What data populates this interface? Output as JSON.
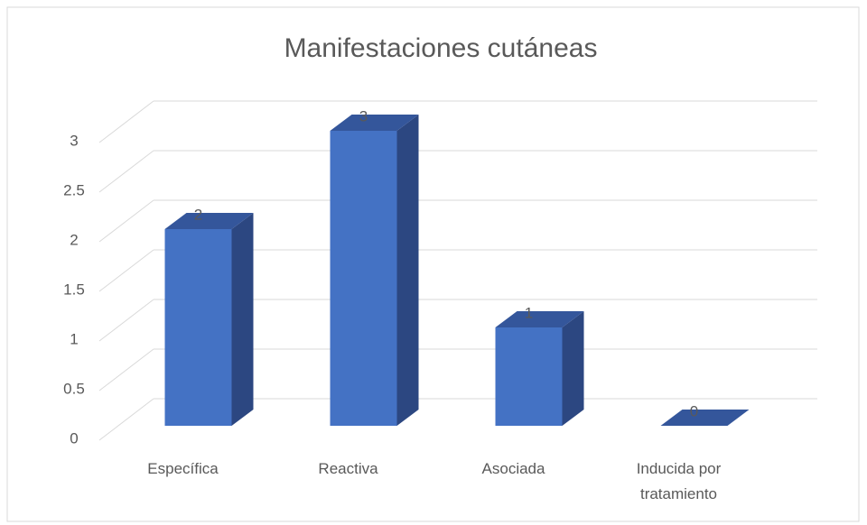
{
  "chart_data": {
    "type": "bar3d",
    "title": "Manifestaciones cutáneas",
    "categories": [
      "Específica",
      "Reactiva",
      "Asociada",
      "Inducida por tratamiento"
    ],
    "values": [
      2,
      3,
      1,
      0
    ],
    "color": "#4472c4",
    "ylim": [
      0,
      3
    ],
    "yticks": [
      0,
      0.5,
      1,
      1.5,
      2,
      2.5,
      3
    ],
    "grid": true
  }
}
